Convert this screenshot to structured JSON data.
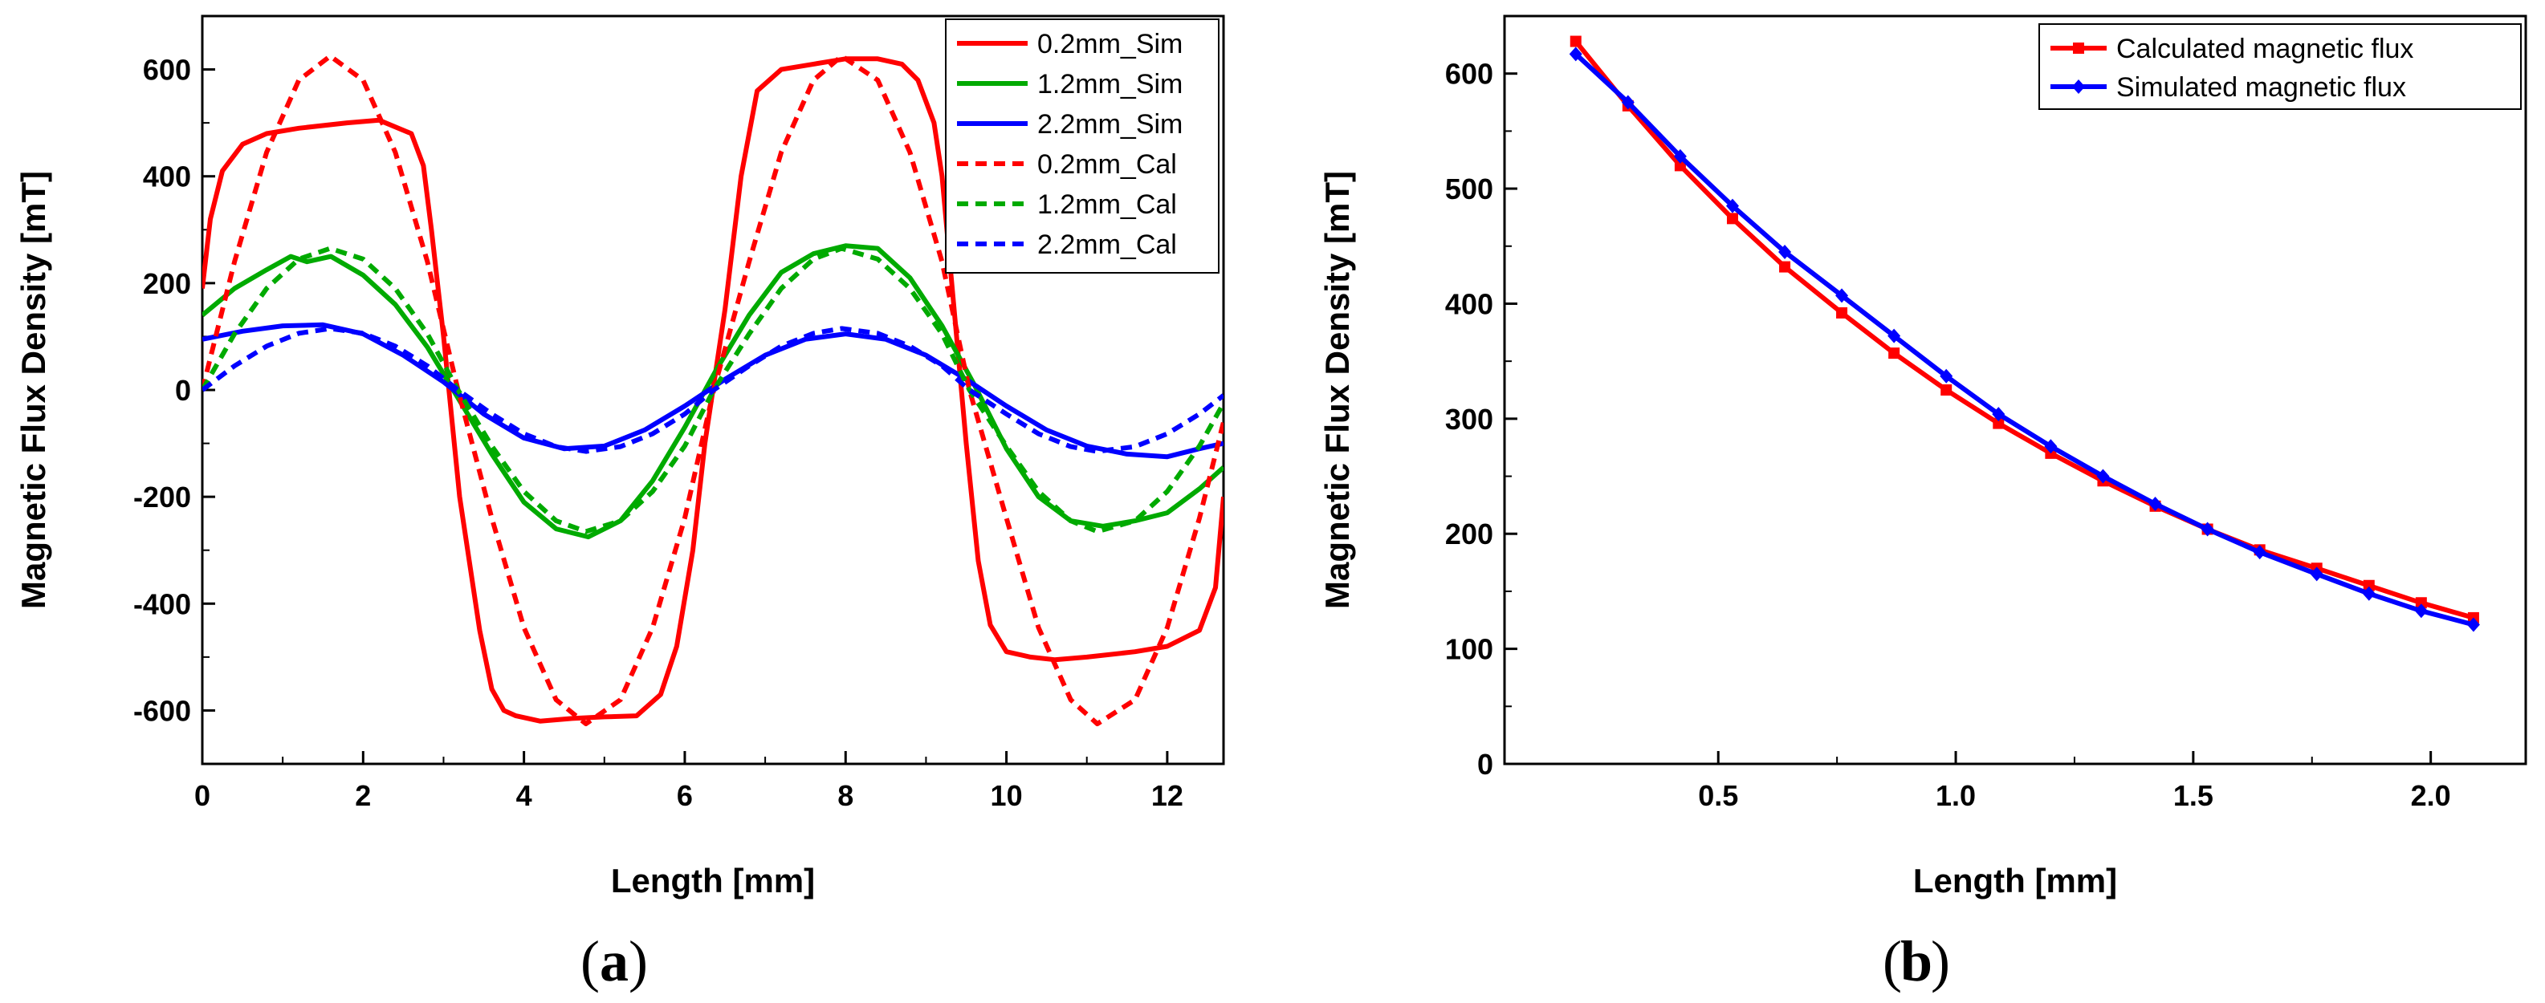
{
  "chart_data": [
    {
      "type": "line",
      "panel_label": "(a)",
      "panel_letter": "a",
      "xlabel": "Length [mm]",
      "ylabel": "Magnetic Flux Density [mT]",
      "xlim": [
        0,
        12.7
      ],
      "ylim": [
        -700,
        700
      ],
      "xticks": [
        0,
        2,
        4,
        6,
        8,
        10,
        12
      ],
      "yticks": [
        -600,
        -400,
        -200,
        0,
        200,
        400,
        600
      ],
      "legend_position": "top-right",
      "series": [
        {
          "name": "0.2mm_Sim",
          "color": "#ff0000",
          "dash": "solid",
          "x": [
            0,
            0.1,
            0.25,
            0.5,
            0.8,
            1.2,
            1.8,
            2.2,
            2.6,
            2.75,
            2.85,
            3.0,
            3.2,
            3.45,
            3.6,
            3.75,
            3.9,
            4.2,
            4.6,
            5.0,
            5.4,
            5.7,
            5.9,
            6.1,
            6.25,
            6.35,
            6.5,
            6.7,
            6.9,
            7.2,
            7.6,
            8.0,
            8.4,
            8.7,
            8.9,
            9.1,
            9.2,
            9.35,
            9.5,
            9.65,
            9.8,
            10.0,
            10.3,
            10.6,
            11.0,
            11.6,
            12.0,
            12.4,
            12.6,
            12.7
          ],
          "y": [
            190,
            320,
            410,
            460,
            480,
            490,
            500,
            505,
            480,
            420,
            300,
            100,
            -200,
            -450,
            -560,
            -600,
            -610,
            -620,
            -615,
            -612,
            -610,
            -570,
            -480,
            -300,
            -100,
            0,
            150,
            400,
            560,
            600,
            610,
            620,
            620,
            610,
            580,
            500,
            400,
            150,
            -100,
            -320,
            -440,
            -490,
            -500,
            -505,
            -500,
            -490,
            -480,
            -450,
            -370,
            -200
          ]
        },
        {
          "name": "1.2mm_Sim",
          "color": "#00aa00",
          "dash": "solid",
          "x": [
            0,
            0.4,
            0.8,
            1.1,
            1.3,
            1.6,
            2.0,
            2.4,
            2.8,
            3.2,
            3.6,
            4.0,
            4.4,
            4.8,
            5.2,
            5.6,
            6.0,
            6.4,
            6.8,
            7.2,
            7.6,
            8.0,
            8.4,
            8.8,
            9.2,
            9.6,
            10.0,
            10.4,
            10.8,
            11.2,
            11.6,
            12.0,
            12.4,
            12.7
          ],
          "y": [
            140,
            190,
            225,
            250,
            240,
            250,
            215,
            160,
            80,
            -20,
            -120,
            -210,
            -260,
            -275,
            -245,
            -170,
            -70,
            40,
            140,
            220,
            255,
            270,
            265,
            210,
            120,
            10,
            -110,
            -200,
            -245,
            -255,
            -245,
            -230,
            -185,
            -145
          ]
        },
        {
          "name": "2.2mm_Sim",
          "color": "#0000ff",
          "dash": "solid",
          "x": [
            0,
            0.5,
            1.0,
            1.5,
            2.0,
            2.5,
            3.0,
            3.5,
            4.0,
            4.5,
            5.0,
            5.5,
            6.0,
            6.5,
            7.0,
            7.5,
            8.0,
            8.5,
            9.0,
            9.5,
            10.0,
            10.5,
            11.0,
            11.5,
            12.0,
            12.4,
            12.7
          ],
          "y": [
            95,
            110,
            120,
            122,
            105,
            65,
            15,
            -45,
            -90,
            -110,
            -105,
            -75,
            -30,
            20,
            65,
            95,
            105,
            95,
            65,
            20,
            -30,
            -75,
            -105,
            -120,
            -125,
            -110,
            -100
          ]
        },
        {
          "name": "0.2mm_Cal",
          "color": "#ff0000",
          "dash": "dashed",
          "x": [
            0,
            0.4,
            0.8,
            1.2,
            1.59,
            2.0,
            2.4,
            2.8,
            3.18,
            3.6,
            4.0,
            4.4,
            4.77,
            5.2,
            5.6,
            6.0,
            6.36,
            6.8,
            7.2,
            7.6,
            7.95,
            8.4,
            8.8,
            9.2,
            9.54,
            10.0,
            10.4,
            10.8,
            11.13,
            11.6,
            12.0,
            12.4,
            12.7
          ],
          "y": [
            0,
            240,
            445,
            580,
            625,
            580,
            445,
            240,
            0,
            -240,
            -445,
            -580,
            -625,
            -580,
            -445,
            -240,
            0,
            240,
            445,
            580,
            625,
            580,
            445,
            240,
            0,
            -240,
            -445,
            -580,
            -625,
            -580,
            -445,
            -240,
            -60
          ]
        },
        {
          "name": "1.2mm_Cal",
          "color": "#00aa00",
          "dash": "dashed",
          "x": [
            0,
            0.4,
            0.8,
            1.2,
            1.59,
            2.0,
            2.4,
            2.8,
            3.18,
            3.6,
            4.0,
            4.4,
            4.77,
            5.2,
            5.6,
            6.0,
            6.36,
            6.8,
            7.2,
            7.6,
            7.95,
            8.4,
            8.8,
            9.2,
            9.54,
            10.0,
            10.4,
            10.8,
            11.13,
            11.6,
            12.0,
            12.4,
            12.7
          ],
          "y": [
            0,
            105,
            190,
            245,
            265,
            245,
            190,
            105,
            0,
            -105,
            -190,
            -245,
            -265,
            -245,
            -190,
            -105,
            0,
            105,
            190,
            245,
            265,
            245,
            190,
            105,
            0,
            -105,
            -190,
            -245,
            -265,
            -245,
            -190,
            -105,
            -25
          ]
        },
        {
          "name": "2.2mm_Cal",
          "color": "#0000ff",
          "dash": "dashed",
          "x": [
            0,
            0.4,
            0.8,
            1.2,
            1.59,
            2.0,
            2.4,
            2.8,
            3.18,
            3.6,
            4.0,
            4.4,
            4.77,
            5.2,
            5.6,
            6.0,
            6.36,
            6.8,
            7.2,
            7.6,
            7.95,
            8.4,
            8.8,
            9.2,
            9.54,
            10.0,
            10.4,
            10.8,
            11.13,
            11.6,
            12.0,
            12.4,
            12.7
          ],
          "y": [
            0,
            45,
            82,
            106,
            115,
            106,
            82,
            45,
            0,
            -45,
            -82,
            -106,
            -115,
            -106,
            -82,
            -45,
            0,
            45,
            82,
            106,
            115,
            106,
            82,
            45,
            0,
            -45,
            -82,
            -106,
            -115,
            -106,
            -82,
            -45,
            -10
          ]
        }
      ]
    },
    {
      "type": "line",
      "panel_label": "(b)",
      "panel_letter": "b",
      "xlabel": "Length [mm]",
      "ylabel": "Magnetic Flux Density [mT]",
      "xlim": [
        0.05,
        2.2
      ],
      "ylim": [
        0,
        650
      ],
      "xticks": [
        0.5,
        1.0,
        1.5,
        2.0
      ],
      "xtick_labels": [
        "0.5",
        "1.0",
        "1.5",
        "2.0"
      ],
      "yticks": [
        0,
        100,
        200,
        300,
        400,
        500,
        600
      ],
      "legend_position": "top-right",
      "series": [
        {
          "name": "Calculated magnetic flux",
          "color": "#ff0000",
          "marker": "square",
          "x": [
            0.2,
            0.31,
            0.42,
            0.53,
            0.64,
            0.76,
            0.87,
            0.98,
            1.09,
            1.2,
            1.31,
            1.42,
            1.53,
            1.64,
            1.76,
            1.87,
            1.98,
            2.09
          ],
          "y": [
            628,
            572,
            520,
            474,
            432,
            392,
            357,
            325,
            296,
            270,
            246,
            224,
            204,
            186,
            170,
            155,
            140,
            127
          ]
        },
        {
          "name": "Simulated magnetic flux",
          "color": "#0000ff",
          "marker": "diamond",
          "x": [
            0.2,
            0.31,
            0.42,
            0.53,
            0.64,
            0.76,
            0.87,
            0.98,
            1.09,
            1.2,
            1.31,
            1.42,
            1.53,
            1.64,
            1.76,
            1.87,
            1.98,
            2.09
          ],
          "y": [
            617,
            575,
            528,
            485,
            445,
            407,
            372,
            337,
            304,
            276,
            250,
            226,
            204,
            184,
            165,
            148,
            133,
            121
          ]
        }
      ]
    }
  ]
}
